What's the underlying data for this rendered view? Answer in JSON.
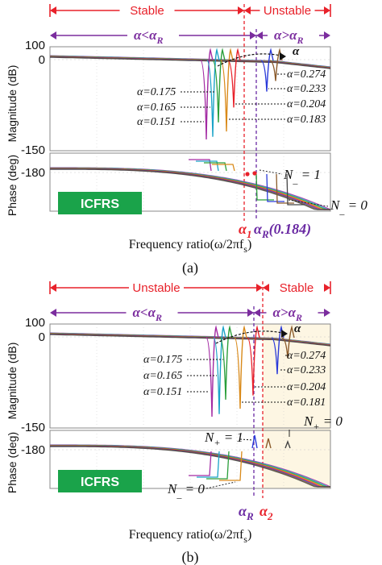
{
  "figure": {
    "xlabel": "Frequency ratio(ω/2πf",
    "xlabel_sub": "s",
    "xlabel_close": ")",
    "badge": "ICFRS",
    "colors": {
      "stable_bracket": "#e8212a",
      "alpha_bracket": "#7b2d9e",
      "alpha1_marker": "#e8212a",
      "alphaR_marker": "#6a2aa3",
      "badge_bg": "#1aa34a",
      "stable_region_fill": "#fdf6e3",
      "grid": "#c8c8c8",
      "curve_colors": [
        "#a32aa3",
        "#1aa3c8",
        "#2a9e3a",
        "#d98a1a",
        "#e8212a",
        "#2a3ad9",
        "#8a5a2a",
        "#444444"
      ]
    },
    "panels": [
      {
        "id": "a",
        "caption": "(a)",
        "left_region": "Stable",
        "right_region": "Unstable",
        "stable_side": "left",
        "left_alpha": "α<α",
        "left_alpha_sub": "R",
        "right_alpha": "α>α",
        "right_alpha_sub": "R",
        "alpha_arrow_label": "α",
        "mag_ylabel": "Magnitude (dB)",
        "phase_ylabel": "Phase (deg)",
        "mag_ticks": [
          "100",
          "0",
          "-150"
        ],
        "phase_ticks": [
          "-180"
        ],
        "left_alpha_labels": [
          "α=0.175",
          "α=0.165",
          "α=0.151"
        ],
        "right_alpha_labels": [
          "α=0.274",
          "α=0.233",
          "α=0.204",
          "α=0.183"
        ],
        "phase_annotations": [
          "N",
          "_",
          " = 1",
          "N",
          "_",
          " = 0"
        ],
        "bottom_markers": {
          "a1": "α",
          "a1_sub": "1",
          "aR": "α",
          "aR_sub": "R",
          "aR_val": "(0.184)"
        }
      },
      {
        "id": "b",
        "caption": "(b)",
        "left_region": "Unstable",
        "right_region": "Stable",
        "stable_side": "right",
        "left_alpha": "α<α",
        "left_alpha_sub": "R",
        "right_alpha": "α>α",
        "right_alpha_sub": "R",
        "alpha_arrow_label": "α",
        "mag_ylabel": "Magnitude (dB)",
        "phase_ylabel": "Phase (deg)",
        "mag_ticks": [
          "100",
          "0",
          "-150"
        ],
        "phase_ticks": [
          "-180"
        ],
        "left_alpha_labels": [
          "α=0.175",
          "α=0.165",
          "α=0.151"
        ],
        "right_alpha_labels": [
          "α=0.274",
          "α=0.233",
          "α=0.204",
          "α=0.181"
        ],
        "phase_annotations": [
          "N",
          "+",
          " = 1",
          "N",
          "+",
          " = 0",
          "N",
          "_",
          " = 0"
        ],
        "bottom_markers": {
          "aR": "α",
          "aR_sub": "R",
          "a2": "α",
          "a2_sub": "2"
        }
      }
    ]
  },
  "chart_data": [
    {
      "type": "line",
      "panel": "a",
      "subplot": "magnitude",
      "ylabel": "Magnitude (dB)",
      "xlabel": "Frequency ratio(ω/2πfs)",
      "ylim": [
        -150,
        100
      ],
      "yticks": [
        100,
        0,
        -150
      ],
      "series": [
        {
          "name": "α=0.151",
          "notch_db": -150
        },
        {
          "name": "α=0.165",
          "notch_db": -145
        },
        {
          "name": "α=0.175",
          "notch_db": -118
        },
        {
          "name": "α=0.183",
          "notch_db": -135
        },
        {
          "name": "α=0.204",
          "notch_db": -90
        },
        {
          "name": "α=0.233",
          "notch_db": -60
        },
        {
          "name": "α=0.274",
          "notch_db": -40
        }
      ]
    },
    {
      "type": "line",
      "panel": "a",
      "subplot": "phase",
      "ylabel": "Phase (deg)",
      "yticks": [
        -180
      ]
    },
    {
      "type": "line",
      "panel": "b",
      "subplot": "magnitude",
      "ylabel": "Magnitude (dB)",
      "ylim": [
        -150,
        100
      ],
      "yticks": [
        100,
        0,
        -150
      ],
      "series": [
        {
          "name": "α=0.151",
          "notch_db": -150
        },
        {
          "name": "α=0.165",
          "notch_db": -145
        },
        {
          "name": "α=0.175",
          "notch_db": -118
        },
        {
          "name": "α=0.181",
          "notch_db": -135
        },
        {
          "name": "α=0.204",
          "notch_db": -110
        },
        {
          "name": "α=0.233",
          "notch_db": -70
        },
        {
          "name": "α=0.274",
          "notch_db": -40
        }
      ]
    },
    {
      "type": "line",
      "panel": "b",
      "subplot": "phase",
      "ylabel": "Phase (deg)",
      "yticks": [
        -180
      ]
    }
  ]
}
